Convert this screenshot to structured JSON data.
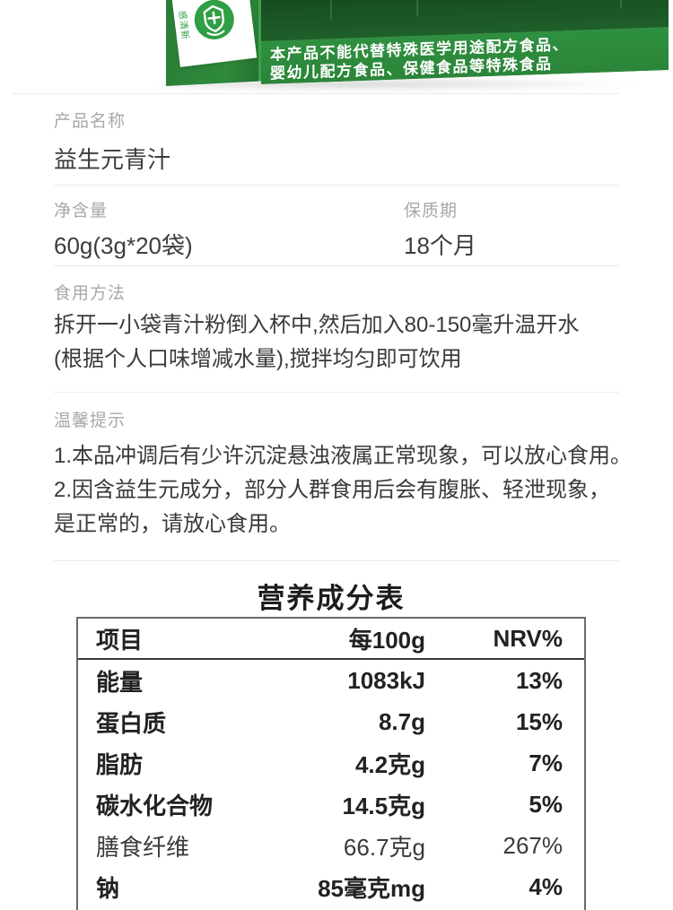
{
  "photo": {
    "box_warning_lines": [
      "本产品不能代替特殊医学用途配方食品、",
      "婴幼儿配方食品、保健食品等特殊食品"
    ],
    "side_label_vertical_text": "感清新",
    "colors": {
      "box_dark_green": "#1d5a28",
      "box_band_green": "#2f9040",
      "box_side_green": "#2b7e37",
      "icon_green": "#2f9e44"
    }
  },
  "info": {
    "product_name": {
      "label": "产品名称",
      "value": "益生元青汁"
    },
    "net_content": {
      "label": "净含量",
      "value": "60g(3g*20袋)"
    },
    "shelf_life": {
      "label": "保质期",
      "value": "18个月"
    },
    "usage": {
      "label": "食用方法",
      "lines": [
        "拆开一小袋青汁粉倒入杯中,然后加入80-150毫升温开水",
        "(根据个人口味增减水量),搅拌均匀即可饮用"
      ]
    },
    "tips": {
      "label": "温馨提示",
      "lines": [
        "1.本品冲调后有少许沉淀悬浊液属正常现象，可以放心食用。",
        "2.因含益生元成分，部分人群食用后会有腹胀、轻泄现象，",
        "是正常的，请放心食用。"
      ]
    }
  },
  "nutrition": {
    "title": "营养成分表",
    "headers": {
      "item": "项目",
      "per": "每100g",
      "nrv": "NRV%"
    },
    "rows": [
      {
        "name": "能量",
        "per100g": "1083kJ",
        "nrv": "13%",
        "bold": true
      },
      {
        "name": "蛋白质",
        "per100g": "8.7g",
        "nrv": "15%",
        "bold": true
      },
      {
        "name": "脂肪",
        "per100g": "4.2克g",
        "nrv": "7%",
        "bold": true
      },
      {
        "name": "碳水化合物",
        "per100g": "14.5克g",
        "nrv": "5%",
        "bold": true
      },
      {
        "name": "膳食纤维",
        "per100g": "66.7克g",
        "nrv": "267%",
        "bold": false
      },
      {
        "name": "钠",
        "per100g": "85毫克mg",
        "nrv": "4%",
        "bold": true
      }
    ]
  }
}
